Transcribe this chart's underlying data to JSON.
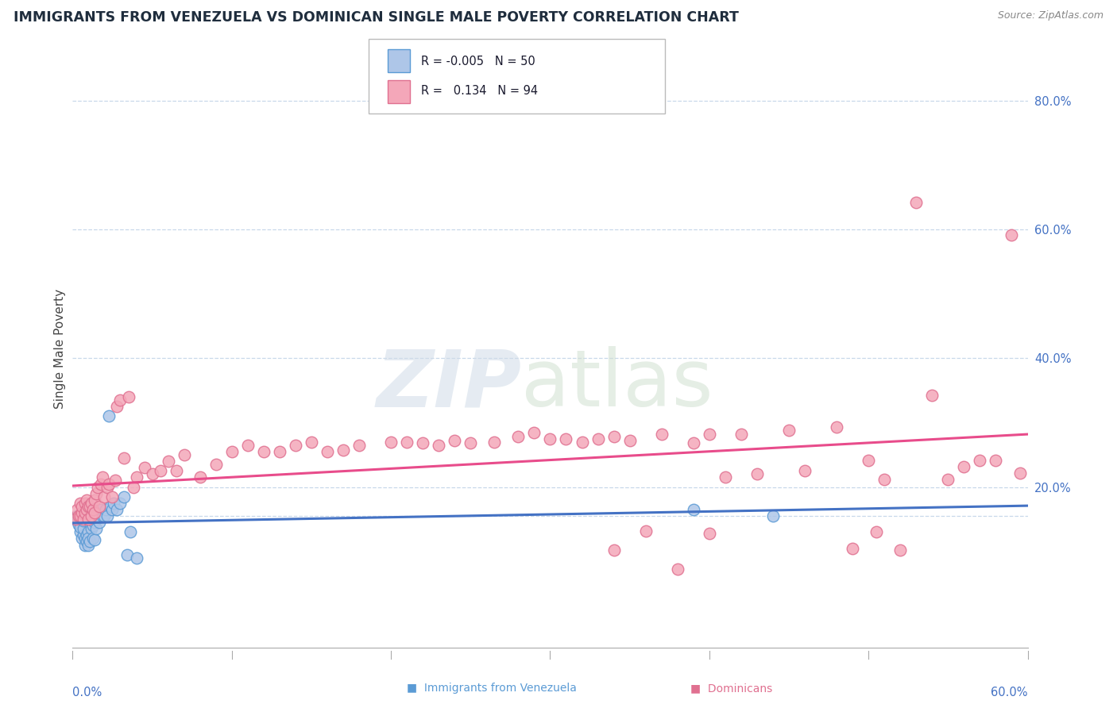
{
  "title": "IMMIGRANTS FROM VENEZUELA VS DOMINICAN SINGLE MALE POVERTY CORRELATION CHART",
  "source": "Source: ZipAtlas.com",
  "ylabel": "Single Male Poverty",
  "color_venezuela_fill": "#aec6e8",
  "color_venezuela_edge": "#5b9bd5",
  "color_dominican_fill": "#f4a7b9",
  "color_dominican_edge": "#e07090",
  "color_line_venezuela": "#4472c4",
  "color_line_dominican": "#e84c8b",
  "color_grid": "#c8d8ea",
  "xmin": 0.0,
  "xmax": 0.6,
  "ymin": -0.05,
  "ymax": 0.88,
  "ytick_vals": [
    0.2,
    0.4,
    0.6,
    0.8
  ],
  "ytick_labels": [
    "20.0%",
    "40.0%",
    "60.0%",
    "80.0%"
  ],
  "venezuela_x": [
    0.003,
    0.003,
    0.004,
    0.004,
    0.005,
    0.005,
    0.005,
    0.006,
    0.006,
    0.006,
    0.007,
    0.007,
    0.007,
    0.008,
    0.008,
    0.008,
    0.009,
    0.009,
    0.01,
    0.01,
    0.01,
    0.011,
    0.011,
    0.012,
    0.012,
    0.013,
    0.013,
    0.014,
    0.014,
    0.015,
    0.015,
    0.016,
    0.017,
    0.018,
    0.019,
    0.02,
    0.021,
    0.022,
    0.023,
    0.024,
    0.025,
    0.026,
    0.028,
    0.03,
    0.032,
    0.034,
    0.036,
    0.04,
    0.39,
    0.44
  ],
  "venezuela_y": [
    0.155,
    0.148,
    0.15,
    0.142,
    0.13,
    0.138,
    0.152,
    0.12,
    0.155,
    0.16,
    0.125,
    0.135,
    0.148,
    0.11,
    0.12,
    0.155,
    0.125,
    0.115,
    0.11,
    0.13,
    0.12,
    0.115,
    0.145,
    0.15,
    0.135,
    0.12,
    0.14,
    0.118,
    0.145,
    0.15,
    0.135,
    0.155,
    0.145,
    0.165,
    0.155,
    0.155,
    0.165,
    0.155,
    0.31,
    0.17,
    0.165,
    0.175,
    0.165,
    0.175,
    0.185,
    0.095,
    0.13,
    0.09,
    0.165,
    0.155
  ],
  "dominican_x": [
    0.002,
    0.003,
    0.004,
    0.005,
    0.005,
    0.006,
    0.006,
    0.007,
    0.008,
    0.008,
    0.009,
    0.009,
    0.01,
    0.01,
    0.011,
    0.012,
    0.012,
    0.013,
    0.014,
    0.014,
    0.015,
    0.016,
    0.017,
    0.018,
    0.019,
    0.02,
    0.022,
    0.023,
    0.025,
    0.027,
    0.028,
    0.03,
    0.032,
    0.035,
    0.038,
    0.04,
    0.045,
    0.05,
    0.055,
    0.06,
    0.065,
    0.07,
    0.08,
    0.09,
    0.1,
    0.11,
    0.12,
    0.13,
    0.14,
    0.15,
    0.16,
    0.17,
    0.18,
    0.2,
    0.21,
    0.22,
    0.23,
    0.24,
    0.25,
    0.265,
    0.28,
    0.29,
    0.3,
    0.31,
    0.32,
    0.33,
    0.34,
    0.35,
    0.37,
    0.39,
    0.4,
    0.42,
    0.45,
    0.48,
    0.5,
    0.51,
    0.52,
    0.53,
    0.54,
    0.55,
    0.56,
    0.57,
    0.58,
    0.59,
    0.595,
    0.34,
    0.36,
    0.38,
    0.4,
    0.41,
    0.43,
    0.46,
    0.49,
    0.505
  ],
  "dominican_y": [
    0.15,
    0.165,
    0.155,
    0.155,
    0.175,
    0.16,
    0.17,
    0.15,
    0.16,
    0.175,
    0.165,
    0.18,
    0.15,
    0.17,
    0.17,
    0.175,
    0.155,
    0.165,
    0.18,
    0.16,
    0.19,
    0.2,
    0.17,
    0.205,
    0.215,
    0.185,
    0.2,
    0.205,
    0.185,
    0.21,
    0.325,
    0.335,
    0.245,
    0.34,
    0.2,
    0.215,
    0.23,
    0.22,
    0.225,
    0.24,
    0.225,
    0.25,
    0.215,
    0.235,
    0.255,
    0.265,
    0.255,
    0.255,
    0.265,
    0.27,
    0.255,
    0.258,
    0.265,
    0.27,
    0.27,
    0.268,
    0.265,
    0.272,
    0.268,
    0.27,
    0.278,
    0.285,
    0.275,
    0.275,
    0.27,
    0.275,
    0.278,
    0.272,
    0.282,
    0.268,
    0.282,
    0.282,
    0.288,
    0.293,
    0.242,
    0.212,
    0.102,
    0.642,
    0.342,
    0.212,
    0.232,
    0.242,
    0.242,
    0.592,
    0.222,
    0.102,
    0.132,
    0.072,
    0.128,
    0.215,
    0.22,
    0.225,
    0.105,
    0.13
  ]
}
